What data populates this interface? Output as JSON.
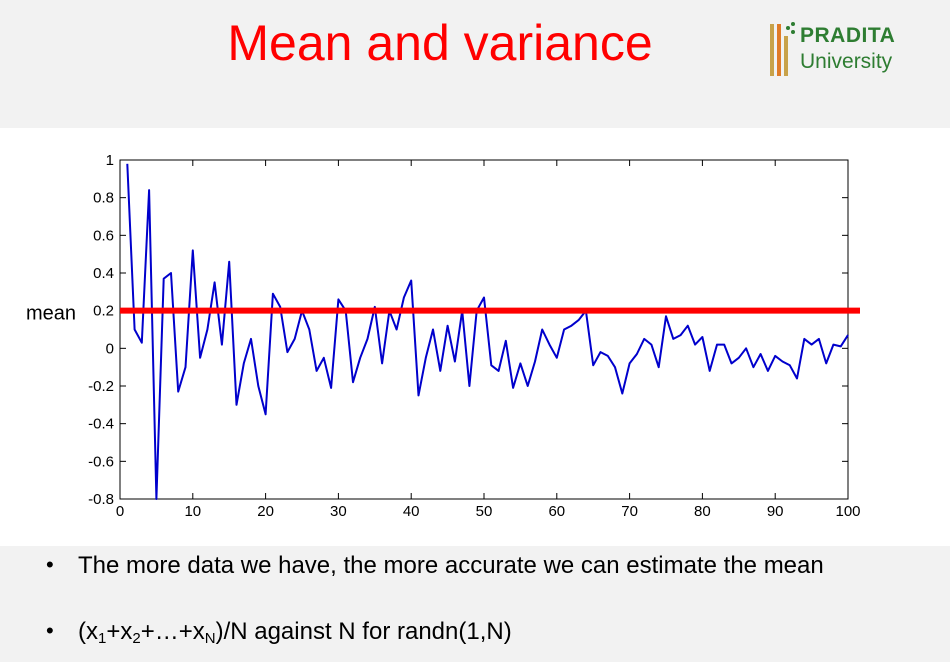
{
  "slide": {
    "title": "Mean and variance",
    "logo": {
      "line1": "PRADITA",
      "line2": "University",
      "icon": "pradita-logo-icon"
    }
  },
  "chart_data": {
    "type": "line",
    "xlim": [
      0,
      100
    ],
    "ylim": [
      -0.8,
      1
    ],
    "xticks": [
      0,
      10,
      20,
      30,
      40,
      50,
      60,
      70,
      80,
      90,
      100
    ],
    "yticks": [
      1,
      0.8,
      0.6,
      0.4,
      0.2,
      0,
      -0.2,
      -0.4,
      -0.6,
      -0.8
    ],
    "xtick_labels": [
      "0",
      "10",
      "20",
      "30",
      "40",
      "50",
      "60",
      "70",
      "80",
      "90",
      "100"
    ],
    "ytick_labels": [
      "1",
      "0.8",
      "0.6",
      "0.4",
      "0.2",
      "0",
      "-0.2",
      "-0.4",
      "-0.6",
      "-0.8"
    ],
    "grid": false,
    "mean_label": "mean",
    "mean_value": 0.2,
    "series_color": "#0000cc",
    "mean_color": "#ff0000",
    "x": [
      1,
      2,
      3,
      4,
      5,
      6,
      7,
      8,
      9,
      10,
      11,
      12,
      13,
      14,
      15,
      16,
      17,
      18,
      19,
      20,
      21,
      22,
      23,
      24,
      25,
      26,
      27,
      28,
      29,
      30,
      31,
      32,
      33,
      34,
      35,
      36,
      37,
      38,
      39,
      40,
      41,
      42,
      43,
      44,
      45,
      46,
      47,
      48,
      49,
      50,
      51,
      52,
      53,
      54,
      55,
      56,
      57,
      58,
      59,
      60,
      61,
      62,
      63,
      64,
      65,
      66,
      67,
      68,
      69,
      70,
      71,
      72,
      73,
      74,
      75,
      76,
      77,
      78,
      79,
      80,
      81,
      82,
      83,
      84,
      85,
      86,
      87,
      88,
      89,
      90,
      91,
      92,
      93,
      94,
      95,
      96,
      97,
      98,
      99,
      100
    ],
    "values": [
      0.98,
      0.1,
      0.03,
      0.84,
      -0.8,
      0.37,
      0.4,
      -0.23,
      -0.1,
      0.52,
      -0.05,
      0.1,
      0.35,
      0.02,
      0.46,
      -0.3,
      -0.08,
      0.05,
      -0.2,
      -0.35,
      0.29,
      0.22,
      -0.02,
      0.05,
      0.2,
      0.1,
      -0.12,
      -0.05,
      -0.21,
      0.26,
      0.2,
      -0.18,
      -0.05,
      0.05,
      0.22,
      -0.08,
      0.2,
      0.1,
      0.27,
      0.36,
      -0.25,
      -0.05,
      0.1,
      -0.12,
      0.12,
      -0.07,
      0.2,
      -0.2,
      0.2,
      0.27,
      -0.09,
      -0.12,
      0.04,
      -0.21,
      -0.08,
      -0.2,
      -0.07,
      0.1,
      0.02,
      -0.05,
      0.1,
      0.12,
      0.15,
      0.2,
      -0.09,
      -0.02,
      -0.04,
      -0.1,
      -0.24,
      -0.08,
      -0.03,
      0.05,
      0.02,
      -0.1,
      0.17,
      0.05,
      0.07,
      0.12,
      0.02,
      0.06,
      -0.12,
      0.02,
      0.02,
      -0.08,
      -0.05,
      0.0,
      -0.1,
      -0.03,
      -0.12,
      -0.04,
      -0.07,
      -0.09,
      -0.16,
      0.05,
      0.02,
      0.05,
      -0.08,
      0.02,
      0.01,
      0.07
    ]
  },
  "bullets": {
    "b1": "The more data we have, the more accurate we can estimate the mean",
    "b2_prefix": "(x",
    "b2_s1": "1",
    "b2_plus1": "+x",
    "b2_s2": "2",
    "b2_mid": "+…+x",
    "b2_sN": "N",
    "b2_suffix": ")/N   against N  for randn(1,N)"
  }
}
